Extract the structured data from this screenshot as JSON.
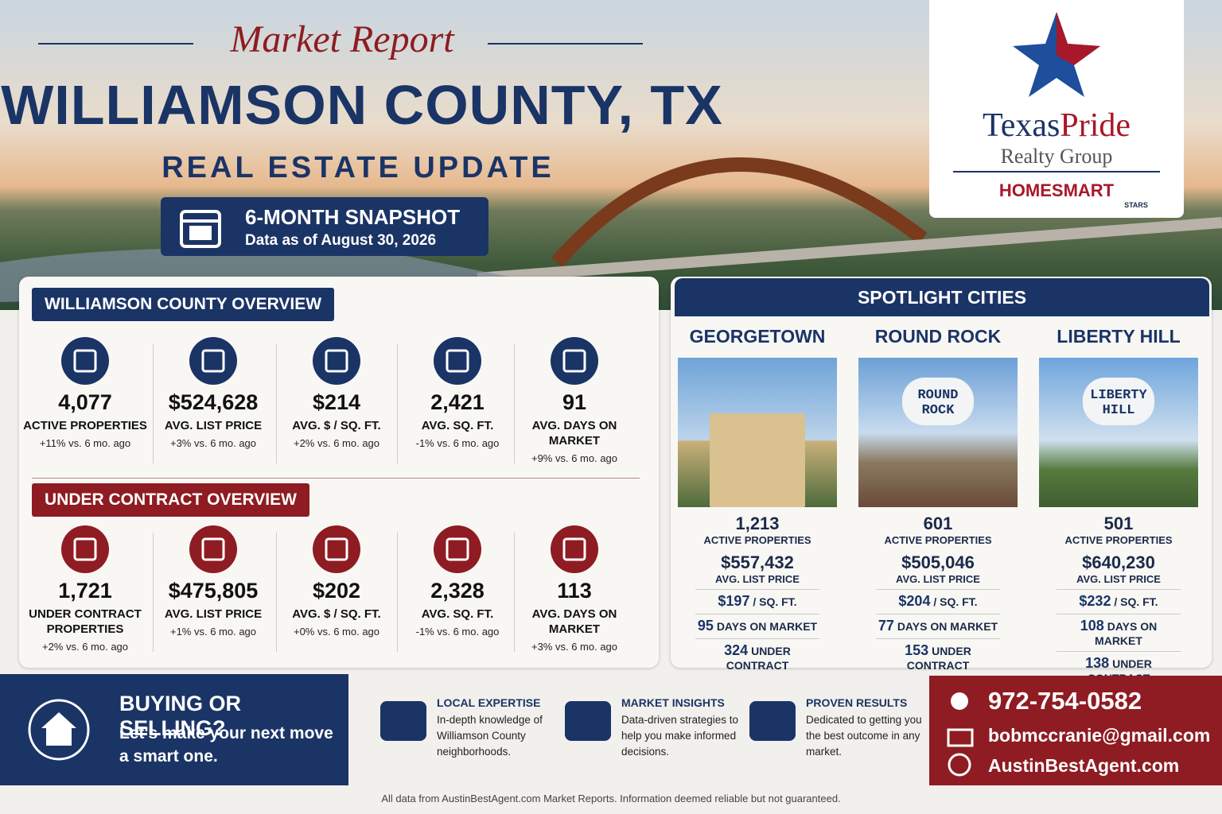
{
  "header": {
    "script_title": "Market Report",
    "title": "WILLIAMSON COUNTY, TX",
    "subtitle": "REAL ESTATE UPDATE",
    "snapshot": "6-MONTH SNAPSHOT",
    "data_date": "Data as of August 30, 2026"
  },
  "logo": {
    "name_1": "Texas",
    "name_2": "Pride",
    "line2": "Realty Group",
    "brand": "HOMESMART",
    "brand_sub": "STARS"
  },
  "county_overview": {
    "heading": "WILLIAMSON COUNTY OVERVIEW",
    "stats": [
      {
        "value": "4,077",
        "label": "ACTIVE PROPERTIES",
        "change": "+11% vs. 6 mo. ago"
      },
      {
        "value": "$524,628",
        "label": "AVG. LIST PRICE",
        "change": "+3% vs. 6 mo. ago"
      },
      {
        "value": "$214",
        "label": "AVG. $ / SQ. FT.",
        "change": "+2% vs. 6 mo. ago"
      },
      {
        "value": "2,421",
        "label": "AVG. SQ. FT.",
        "change": "-1% vs. 6 mo. ago"
      },
      {
        "value": "91",
        "label": "AVG. DAYS ON MARKET",
        "change": "+9% vs. 6 mo. ago"
      }
    ]
  },
  "under_contract": {
    "heading": "UNDER CONTRACT OVERVIEW",
    "stats": [
      {
        "value": "1,721",
        "label": "UNDER CONTRACT PROPERTIES",
        "change": "+2% vs. 6 mo. ago"
      },
      {
        "value": "$475,805",
        "label": "AVG. LIST PRICE",
        "change": "+1% vs. 6 mo. ago"
      },
      {
        "value": "$202",
        "label": "AVG. $ / SQ. FT.",
        "change": "+0% vs. 6 mo. ago"
      },
      {
        "value": "2,328",
        "label": "AVG. SQ. FT.",
        "change": "-1% vs. 6 mo. ago"
      },
      {
        "value": "113",
        "label": "AVG. DAYS ON MARKET",
        "change": "+3% vs. 6 mo. ago"
      }
    ]
  },
  "spotlight": {
    "heading": "SPOTLIGHT CITIES",
    "cities": [
      {
        "name": "GEORGETOWN",
        "active": "1,213",
        "active_label": "ACTIVE PROPERTIES",
        "price": "$557,432",
        "price_label": "AVG. LIST PRICE",
        "ppsf": "$197",
        "ppsf_label": "/ SQ. FT.",
        "dom": "95",
        "dom_label": "DAYS ON MARKET",
        "uc": "324",
        "uc_label": "UNDER CONTRACT"
      },
      {
        "name": "ROUND ROCK",
        "photo_label": "ROUND ROCK",
        "active": "601",
        "active_label": "ACTIVE PROPERTIES",
        "price": "$505,046",
        "price_label": "AVG. LIST PRICE",
        "ppsf": "$204",
        "ppsf_label": "/ SQ. FT.",
        "dom": "77",
        "dom_label": "DAYS ON MARKET",
        "uc": "153",
        "uc_label": "UNDER CONTRACT"
      },
      {
        "name": "LIBERTY HILL",
        "photo_label": "LIBERTY HILL",
        "active": "501",
        "active_label": "ACTIVE PROPERTIES",
        "price": "$640,230",
        "price_label": "AVG. LIST PRICE",
        "ppsf": "$232",
        "ppsf_label": "/ SQ. FT.",
        "dom": "108",
        "dom_label": "DAYS ON MARKET",
        "uc": "138",
        "uc_label": "UNDER CONTRACT"
      }
    ]
  },
  "footer": {
    "cta_heading": "BUYING OR SELLING?",
    "cta_text": "Let's make your next move a smart one.",
    "features": [
      {
        "title": "LOCAL EXPERTISE",
        "text": "In-depth knowledge of Williamson County neighborhoods."
      },
      {
        "title": "MARKET INSIGHTS",
        "text": "Data-driven strategies to help you make informed decisions."
      },
      {
        "title": "PROVEN RESULTS",
        "text": "Dedicated to getting you the best outcome in any market."
      }
    ],
    "phone": "972-754-0582",
    "email": "bobmccranie@gmail.com",
    "website": "AustinBestAgent.com",
    "disclaimer": "All data from AustinBestAgent.com Market Reports. Information deemed reliable but not guaranteed."
  }
}
